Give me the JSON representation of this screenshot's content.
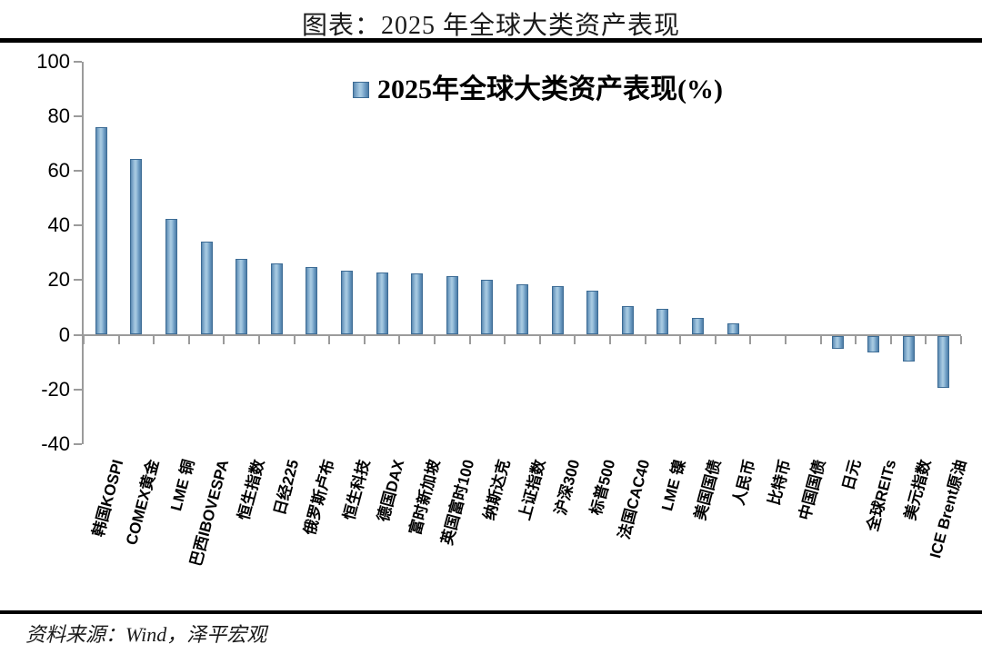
{
  "header": {
    "title": "图表：2025 年全球大类资产表现"
  },
  "footer": {
    "source": "资料来源：Wind，泽平宏观"
  },
  "chart_data": {
    "type": "bar",
    "title": "图表：2025 年全球大类资产表现",
    "legend": "2025年全球大类资产表现(%)",
    "legend_position": "top-center",
    "grid": false,
    "xlabel": "",
    "ylabel": "",
    "ylim": [
      -40,
      100
    ],
    "ytick_interval": 20,
    "yticks": [
      100,
      80,
      60,
      40,
      20,
      0,
      -20,
      -40
    ],
    "categories": [
      "韩国KOSPI",
      "COMEX黄金",
      "LME 铜",
      "巴西IBOVESPA",
      "恒生指数",
      "日经225",
      "俄罗斯卢布",
      "恒生科技",
      "德国DAX",
      "富时新加坡",
      "英国富时100",
      "纳斯达克",
      "上证指数",
      "沪深300",
      "标普500",
      "法国CAC40",
      "LME 镍",
      "美国国债",
      "人民币",
      "比特币",
      "中国国债",
      "日元",
      "全球REITs",
      "美元指数",
      "ICE Brent原油"
    ],
    "values": [
      75.8,
      64.4,
      42.4,
      34.1,
      27.8,
      26.2,
      24.9,
      23.5,
      22.9,
      22.5,
      21.4,
      20.2,
      18.5,
      17.7,
      16.1,
      10.3,
      9.6,
      6.1,
      4.2,
      0,
      0,
      -4.7,
      -6.3,
      -9.6,
      -19.0
    ],
    "colors": {
      "bar_light": "#A9CBE2",
      "bar_mid": "#6D9CC4",
      "bar_dark": "#4D7CA5",
      "bar_border": "#3D6C95",
      "axis": "#9B9B9B",
      "text": "#000000"
    },
    "source": "资料来源：Wind，泽平宏观"
  }
}
